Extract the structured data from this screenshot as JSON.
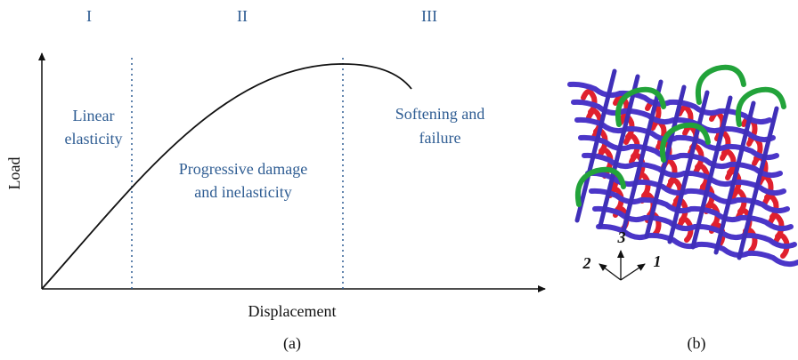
{
  "regions": [
    {
      "numeral": "I",
      "label": [
        "Linear",
        "elasticity"
      ]
    },
    {
      "numeral": "II",
      "label": [
        "Progressive damage",
        "and inelasticity"
      ]
    },
    {
      "numeral": "III",
      "label": [
        "Softening and",
        "failure"
      ]
    }
  ],
  "axes": {
    "y_label": "Load",
    "x_label": "Displacement"
  },
  "triad": [
    "3",
    "2",
    "1"
  ],
  "captions": [
    "(a)",
    "(b)"
  ]
}
